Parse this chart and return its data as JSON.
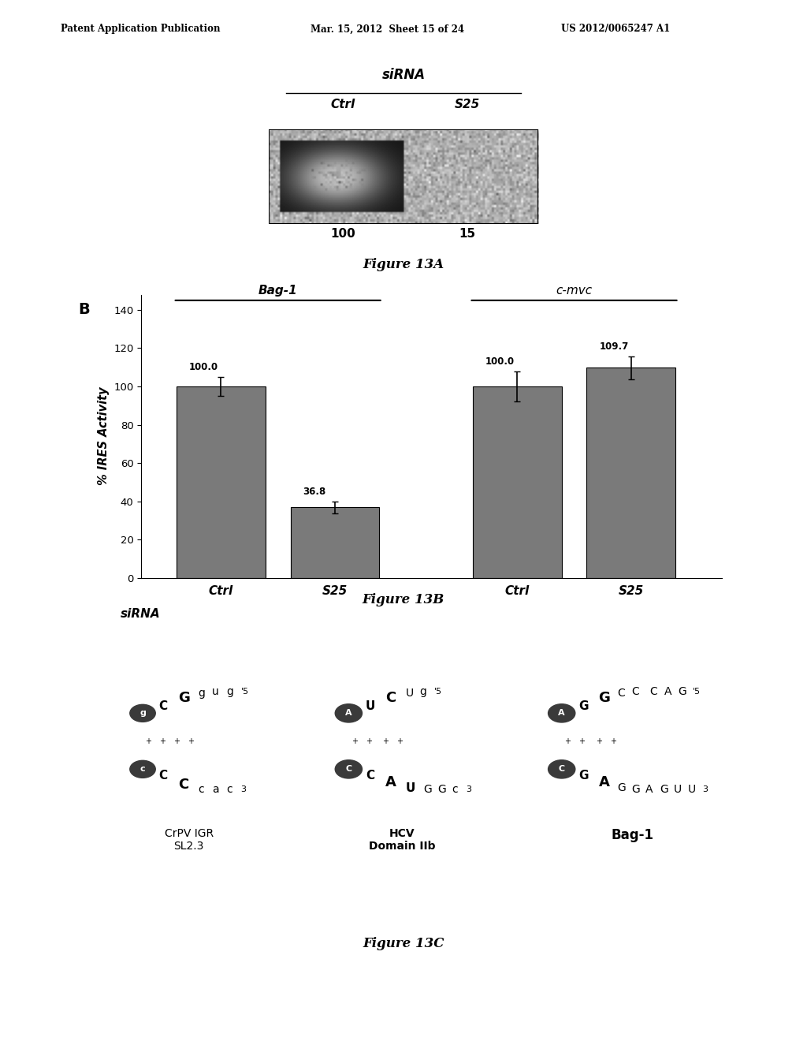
{
  "page_header_left": "Patent Application Publication",
  "page_header_mid": "Mar. 15, 2012  Sheet 15 of 24",
  "page_header_right": "US 2012/0065247 A1",
  "fig13A_title": "Figure 13A",
  "fig13A_sirna_label": "siRNA",
  "fig13A_ctrl_label": "Ctrl",
  "fig13A_s25_label": "S25",
  "fig13A_ctrl_value": "100",
  "fig13A_s25_value": "15",
  "fig13B_title": "Figure 13B",
  "fig13B_panel_label": "B",
  "fig13B_group1_label": "Bag-1",
  "fig13B_group2_label": "c-mvc",
  "fig13B_ylabel": "% IRES Activity",
  "fig13B_xlabel": "siRNA",
  "fig13B_categories": [
    "Ctrl",
    "S25",
    "Ctrl",
    "S25"
  ],
  "fig13B_values": [
    100.0,
    36.8,
    100.0,
    109.7
  ],
  "fig13B_errors": [
    5.0,
    3.0,
    8.0,
    6.0
  ],
  "fig13B_bar_color": "#7a7a7a",
  "fig13B_yticks": [
    0,
    20,
    40,
    60,
    80,
    100,
    120,
    140
  ],
  "fig13B_ylim": [
    0,
    148
  ],
  "fig13C_title": "Figure 13C",
  "fig13C_struct1_name": "CrPV IGR\nSL2.3",
  "fig13C_struct2_name": "HCV\nDomain IIb",
  "fig13C_struct3_name": "Bag-1",
  "bg_color": "#ffffff",
  "text_color": "#000000",
  "node_color": "#3a3a3a"
}
